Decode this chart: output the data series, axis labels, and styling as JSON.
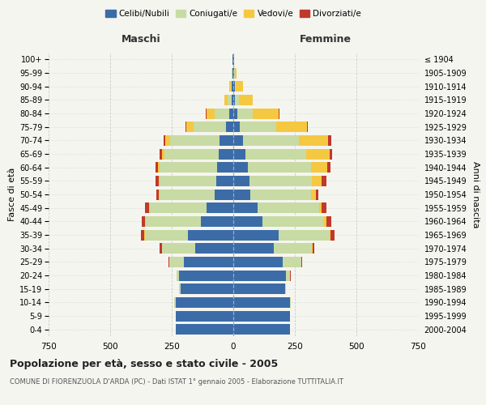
{
  "age_groups": [
    "0-4",
    "5-9",
    "10-14",
    "15-19",
    "20-24",
    "25-29",
    "30-34",
    "35-39",
    "40-44",
    "45-49",
    "50-54",
    "55-59",
    "60-64",
    "65-69",
    "70-74",
    "75-79",
    "80-84",
    "85-89",
    "90-94",
    "95-99",
    "100+"
  ],
  "birth_years": [
    "2000-2004",
    "1995-1999",
    "1990-1994",
    "1985-1989",
    "1980-1984",
    "1975-1979",
    "1970-1974",
    "1965-1969",
    "1960-1964",
    "1955-1959",
    "1950-1954",
    "1945-1949",
    "1940-1944",
    "1935-1939",
    "1930-1934",
    "1925-1929",
    "1920-1924",
    "1915-1919",
    "1910-1914",
    "1905-1909",
    "≤ 1904"
  ],
  "maschi": {
    "celibi": [
      235,
      235,
      235,
      215,
      220,
      200,
      155,
      185,
      130,
      110,
      75,
      70,
      65,
      60,
      55,
      30,
      15,
      8,
      5,
      3,
      2
    ],
    "coniugati": [
      0,
      0,
      5,
      5,
      10,
      60,
      135,
      175,
      225,
      230,
      225,
      230,
      235,
      220,
      200,
      130,
      60,
      15,
      5,
      2,
      0
    ],
    "vedovi": [
      0,
      0,
      0,
      0,
      0,
      0,
      1,
      1,
      2,
      2,
      3,
      4,
      5,
      8,
      20,
      30,
      35,
      12,
      5,
      2,
      0
    ],
    "divorziati": [
      0,
      0,
      0,
      0,
      1,
      2,
      8,
      15,
      15,
      15,
      10,
      12,
      12,
      10,
      8,
      3,
      2,
      0,
      0,
      0,
      0
    ]
  },
  "femmine": {
    "nubili": [
      230,
      230,
      230,
      210,
      215,
      200,
      165,
      185,
      120,
      100,
      70,
      65,
      60,
      50,
      40,
      25,
      15,
      8,
      5,
      3,
      2
    ],
    "coniugate": [
      0,
      0,
      5,
      5,
      15,
      75,
      155,
      205,
      250,
      250,
      245,
      255,
      255,
      245,
      225,
      150,
      65,
      15,
      5,
      2,
      0
    ],
    "vedove": [
      0,
      0,
      0,
      0,
      1,
      1,
      2,
      5,
      8,
      10,
      20,
      40,
      65,
      95,
      120,
      125,
      105,
      55,
      30,
      8,
      2
    ],
    "divorziate": [
      0,
      0,
      0,
      0,
      1,
      2,
      8,
      15,
      20,
      18,
      10,
      18,
      15,
      12,
      12,
      3,
      2,
      0,
      0,
      0,
      0
    ]
  },
  "colors": {
    "celibi": "#3b6ca8",
    "coniugati": "#c8dba4",
    "vedovi": "#f5c842",
    "divorziati": "#c0392b"
  },
  "xlim": 750,
  "title": "Popolazione per età, sesso e stato civile - 2005",
  "subtitle": "COMUNE DI FIORENZUOLA D'ARDA (PC) - Dati ISTAT 1° gennaio 2005 - Elaborazione TUTTITALIA.IT",
  "xlabel_left": "Maschi",
  "xlabel_right": "Femmine",
  "ylabel_left": "Fasce di età",
  "ylabel_right": "Anni di nascita",
  "bg_color": "#f5f5f0",
  "grid_color": "#cccccc"
}
